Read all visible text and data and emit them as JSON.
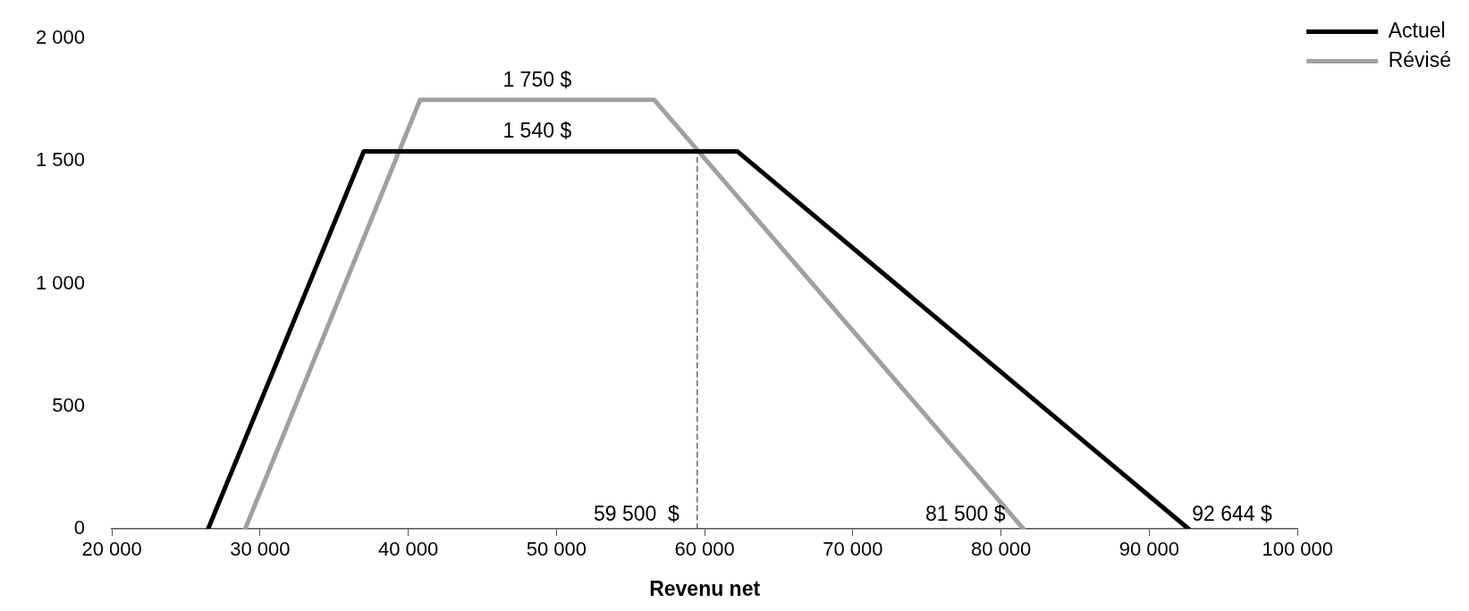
{
  "chart_data": {
    "type": "line",
    "xlabel": "Revenu net",
    "series": [
      {
        "name": "Actuel",
        "color": "#000000",
        "x": [
          26500,
          37000,
          62200,
          92644
        ],
        "values": [
          0,
          1540,
          1540,
          0
        ]
      },
      {
        "name": "Révisé",
        "color": "#a0a0a0",
        "x": [
          29000,
          40800,
          56600,
          81500
        ],
        "values": [
          0,
          1750,
          1750,
          0
        ]
      },
      {
        "color": "#404040",
        "x": [
          59500,
          59500
        ],
        "values": [
          0,
          1540
        ],
        "line_style": "dashed"
      }
    ],
    "xlim": [
      20000,
      100000
    ],
    "xticks": [
      {
        "value": 20000,
        "label": "20 000"
      },
      {
        "value": 30000,
        "label": "30 000"
      },
      {
        "value": 40000,
        "label": "40 000"
      },
      {
        "value": 50000,
        "label": "50 000"
      },
      {
        "value": 60000,
        "label": "60 000"
      },
      {
        "value": 70000,
        "label": "70 000"
      },
      {
        "value": 80000,
        "label": "80 000"
      },
      {
        "value": 90000,
        "label": "90 000"
      },
      {
        "value": 100000,
        "label": "100 000"
      }
    ],
    "ylim": [
      0,
      2000
    ],
    "yticks": [
      0,
      500,
      {
        "value": 1000,
        "label": "1 000"
      },
      {
        "value": 1500,
        "label": "1 500"
      },
      {
        "value": 2000,
        "label": "2 000"
      }
    ],
    "annotations": [
      {
        "text": "1 750 $",
        "x": 48700,
        "y": 1750
      },
      {
        "text": "1 540 $",
        "x": 48700,
        "y": 1540
      },
      {
        "text": "59 500  $",
        "x": 59500,
        "y": 0
      },
      {
        "text": "81 500 $",
        "x": 81500,
        "y": 0
      },
      {
        "text": "92 644 $",
        "x": 92644,
        "y": 0
      }
    ],
    "grid": false,
    "legend": "top right",
    "marker": "none",
    "line_style": "solid"
  }
}
